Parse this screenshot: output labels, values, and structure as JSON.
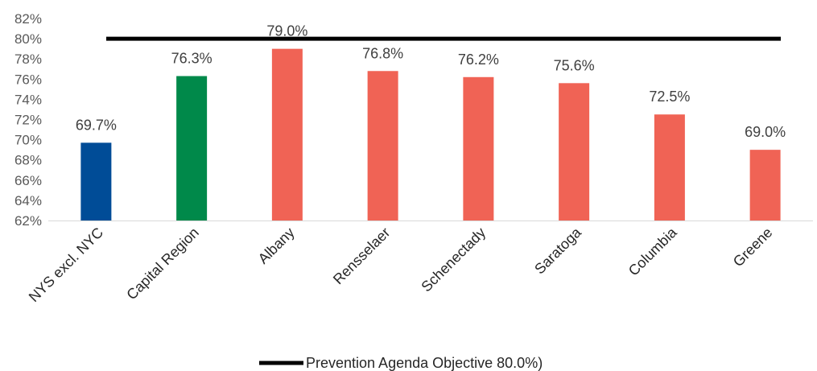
{
  "chart_data": {
    "type": "bar",
    "categories": [
      "NYS excl. NYC",
      "Capital Region",
      "Albany",
      "Rensselaer",
      "Schenectady",
      "Saratoga",
      "Columbia",
      "Greene"
    ],
    "values": [
      69.7,
      76.3,
      79.0,
      76.8,
      76.2,
      75.6,
      72.5,
      69.0
    ],
    "data_labels": [
      "69.7%",
      "76.3%",
      "79.0%",
      "76.8%",
      "76.2%",
      "75.6%",
      "72.5%",
      "69.0%"
    ],
    "bar_colors": [
      "#004C97",
      "#00894A",
      "#F06355",
      "#F06355",
      "#F06355",
      "#F06355",
      "#F06355",
      "#F06355"
    ],
    "ylim": [
      62,
      82
    ],
    "yticks": [
      62,
      64,
      66,
      68,
      70,
      72,
      74,
      76,
      78,
      80,
      82
    ],
    "ytick_labels": [
      "62%",
      "64%",
      "66%",
      "68%",
      "70%",
      "72%",
      "74%",
      "76%",
      "78%",
      "80%",
      "82%"
    ],
    "grid": false,
    "reference_line": {
      "value": 80.0,
      "color": "#000000",
      "label": "Prevention Agenda Objective 80.0%)"
    },
    "legend": {
      "position": "bottom",
      "entries": [
        "Prevention Agenda Objective 80.0%)"
      ]
    },
    "title": "",
    "xlabel": "",
    "ylabel": ""
  }
}
